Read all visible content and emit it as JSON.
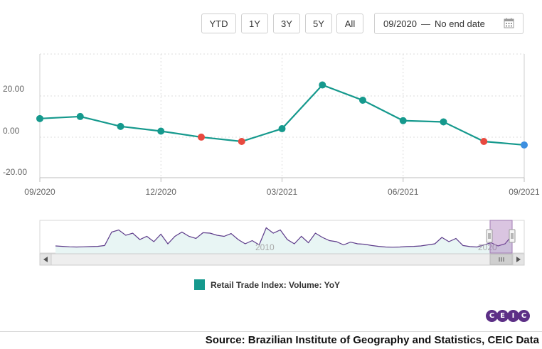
{
  "toolbar": {
    "ranges": [
      "YTD",
      "1Y",
      "3Y",
      "5Y",
      "All"
    ],
    "date_start": "09/2020",
    "date_separator": "—",
    "date_end": "No end date"
  },
  "chart_data": {
    "type": "line",
    "title": "",
    "xlabel": "",
    "ylabel": "",
    "ylim": [
      -20,
      40
    ],
    "y_ticks": [
      "20.00",
      "0.00",
      "-20.00"
    ],
    "x_ticks": [
      "09/2020",
      "12/2020",
      "03/2021",
      "06/2021",
      "09/2021"
    ],
    "series": [
      {
        "name": "Retail Trade Index: Volume: YoY",
        "color": "#15998d",
        "x": [
          "2020-09",
          "2020-10",
          "2020-11",
          "2020-12",
          "2021-01",
          "2021-02",
          "2021-03",
          "2021-04",
          "2021-05",
          "2021-06",
          "2021-07",
          "2021-08",
          "2021-09"
        ],
        "values": [
          7.3,
          8.3,
          3.5,
          1.2,
          -1.7,
          -3.8,
          2.4,
          23.6,
          16.2,
          6.3,
          5.7,
          -3.8,
          -5.5
        ],
        "point_colors": [
          "#15998d",
          "#15998d",
          "#15998d",
          "#15998d",
          "#e8493f",
          "#e8493f",
          "#15998d",
          "#15998d",
          "#15998d",
          "#15998d",
          "#15998d",
          "#e8493f",
          "#3d8fe0"
        ]
      }
    ],
    "navigator": {
      "labels": [
        "2010",
        "2020"
      ]
    },
    "legend": "bottom-center"
  },
  "footer": {
    "logo_letters": [
      "C",
      "E",
      "I",
      "C"
    ],
    "source": "Source: Brazilian Institute of Geography and Statistics, CEIC Data"
  }
}
